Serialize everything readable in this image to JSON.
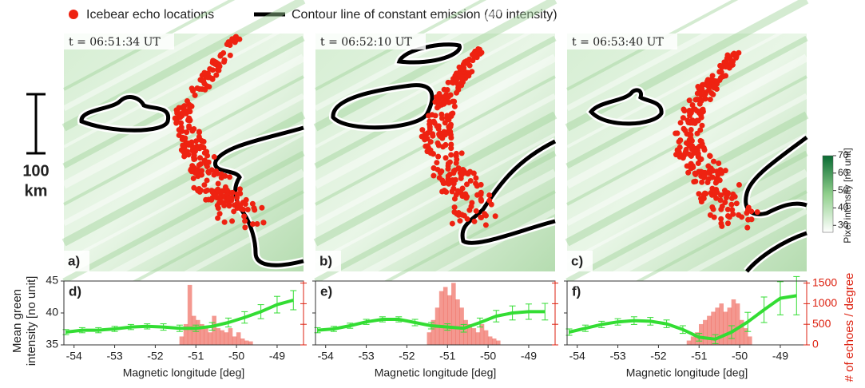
{
  "legend": {
    "echo": "Icebear echo locations",
    "contour": "Contour line of constant emission (40 intensity)"
  },
  "scale_bar": {
    "value": "100",
    "unit": "km"
  },
  "colorbar": {
    "label": "Pixel intensity [no unit]",
    "lim": [
      26,
      70
    ],
    "ticks": [
      30,
      40,
      50,
      60,
      70
    ]
  },
  "panels": [
    {
      "time": "t = 06:51:34 UT",
      "label": "a)"
    },
    {
      "time": "t = 06:52:10 UT",
      "label": "b)"
    },
    {
      "time": "t = 06:53:40 UT",
      "label": "c)"
    }
  ],
  "chart_data": [
    {
      "type": "line",
      "label": "d)",
      "xlabel": "Magnetic longitude [deg]",
      "ylabel": [
        "Mean green",
        "intensity [no unit]"
      ],
      "x": [
        -54.2,
        -53.8,
        -53.4,
        -53.0,
        -52.6,
        -52.2,
        -51.8,
        -51.4,
        -51.0,
        -50.6,
        -50.2,
        -49.8,
        -49.4,
        -49.0,
        -48.6
      ],
      "values": [
        37.0,
        37.3,
        37.3,
        37.5,
        37.8,
        37.9,
        37.8,
        37.6,
        37.6,
        37.9,
        38.5,
        39.3,
        40.2,
        41.3,
        42.0
      ],
      "errors": [
        0.4,
        0.4,
        0.4,
        0.4,
        0.4,
        0.4,
        0.5,
        0.5,
        0.5,
        0.6,
        0.7,
        0.9,
        1.1,
        1.3,
        1.5
      ],
      "color": "#33dd33",
      "xlim": [
        -54.25,
        -48.35
      ],
      "xticks": [
        -54,
        -53,
        -52,
        -51,
        -50,
        -49
      ],
      "ylim": [
        35,
        45
      ],
      "yticks": [
        35,
        40,
        45
      ],
      "ytick_labels": true,
      "histogram": {
        "axis": "y2",
        "color": "#ee5548",
        "bins": [
          -51.4,
          -51.3,
          -51.2,
          -51.1,
          -51.0,
          -50.9,
          -50.8,
          -50.7,
          -50.6,
          -50.5,
          -50.4,
          -50.3,
          -50.2,
          -50.1,
          -50.0,
          -49.9,
          -49.8,
          -49.7,
          -49.6
        ],
        "counts": [
          200,
          500,
          1450,
          700,
          600,
          500,
          450,
          300,
          700,
          400,
          350,
          300,
          400,
          200,
          300,
          150,
          100,
          80
        ]
      },
      "y2lim": [
        0,
        1550
      ],
      "y2ticks": [
        0,
        500,
        1000,
        1500
      ],
      "y2tick_labels": false
    },
    {
      "type": "line",
      "label": "e)",
      "xlabel": "Magnetic longitude [deg]",
      "x": [
        -54.2,
        -53.8,
        -53.4,
        -53.0,
        -52.6,
        -52.2,
        -51.8,
        -51.4,
        -51.0,
        -50.6,
        -50.2,
        -49.8,
        -49.4,
        -49.0,
        -48.6
      ],
      "values": [
        37.3,
        37.5,
        38.0,
        38.6,
        39.0,
        39.0,
        38.5,
        38.0,
        37.8,
        37.6,
        38.5,
        39.5,
        40.0,
        40.2,
        40.2
      ],
      "errors": [
        0.4,
        0.4,
        0.4,
        0.4,
        0.4,
        0.4,
        0.5,
        0.5,
        0.5,
        0.6,
        0.7,
        0.9,
        1.1,
        1.2,
        1.3
      ],
      "color": "#33dd33",
      "xlim": [
        -54.25,
        -48.35
      ],
      "xticks": [
        -54,
        -53,
        -52,
        -51,
        -50,
        -49
      ],
      "ylim": [
        35,
        45
      ],
      "yticks": [
        35,
        40,
        45
      ],
      "ytick_labels": false,
      "histogram": {
        "axis": "y2",
        "color": "#ee5548",
        "bins": [
          -51.5,
          -51.4,
          -51.3,
          -51.2,
          -51.1,
          -51.0,
          -50.9,
          -50.8,
          -50.7,
          -50.6,
          -50.5,
          -50.4,
          -50.3,
          -50.2,
          -50.1,
          -50.0,
          -49.9,
          -49.8,
          -49.7
        ],
        "counts": [
          300,
          600,
          900,
          1300,
          1400,
          1200,
          1500,
          1100,
          900,
          600,
          500,
          400,
          300,
          500,
          350,
          200,
          150,
          100
        ]
      },
      "y2lim": [
        0,
        1550
      ],
      "y2ticks": [
        0,
        500,
        1000,
        1500
      ],
      "y2tick_labels": false
    },
    {
      "type": "line",
      "label": "f)",
      "xlabel": "Magnetic longitude [deg]",
      "y2label": "# of echoes / degree",
      "x": [
        -54.2,
        -53.8,
        -53.4,
        -53.0,
        -52.6,
        -52.2,
        -51.8,
        -51.4,
        -51.0,
        -50.6,
        -50.2,
        -49.8,
        -49.4,
        -49.0,
        -48.6
      ],
      "values": [
        37.0,
        37.6,
        38.2,
        38.6,
        38.8,
        38.7,
        38.3,
        37.4,
        36.2,
        35.9,
        37.0,
        38.6,
        40.5,
        42.3,
        42.7
      ],
      "errors": [
        0.5,
        0.5,
        0.5,
        0.5,
        0.6,
        0.6,
        0.6,
        0.6,
        0.6,
        0.7,
        1.0,
        1.5,
        2.0,
        2.6,
        3.0
      ],
      "color": "#33dd33",
      "xlim": [
        -54.25,
        -48.35
      ],
      "xticks": [
        -54,
        -53,
        -52,
        -51,
        -50,
        -49
      ],
      "ylim": [
        35,
        45
      ],
      "yticks": [
        35,
        40,
        45
      ],
      "ytick_labels": false,
      "histogram": {
        "axis": "y2",
        "color": "#ee5548",
        "bins": [
          -51.3,
          -51.2,
          -51.1,
          -51.0,
          -50.9,
          -50.8,
          -50.7,
          -50.6,
          -50.5,
          -50.4,
          -50.3,
          -50.2,
          -50.1,
          -50.0,
          -49.9,
          -49.8,
          -49.7
        ],
        "counts": [
          100,
          200,
          300,
          500,
          600,
          700,
          800,
          900,
          1000,
          800,
          900,
          1100,
          1000,
          600,
          400,
          200
        ]
      },
      "y2lim": [
        0,
        1550
      ],
      "y2ticks": [
        0,
        500,
        1000,
        1500
      ],
      "y2tick_labels": true
    }
  ]
}
